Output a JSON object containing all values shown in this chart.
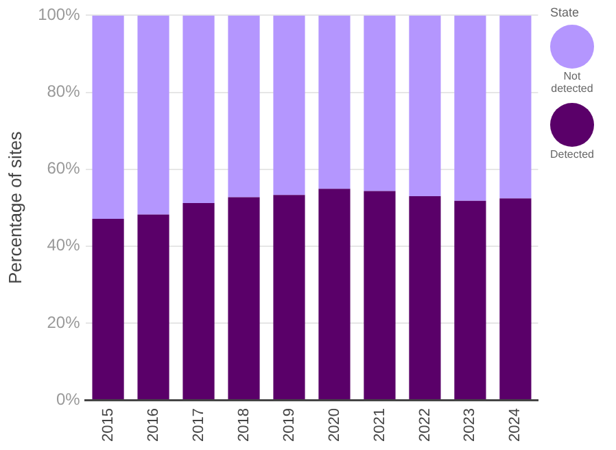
{
  "chart_data": {
    "type": "bar",
    "stacked": true,
    "ylabel": "Percentage of sites",
    "legend_title": "State",
    "legend": "right",
    "grid": "y",
    "categories": [
      "2015",
      "2016",
      "2017",
      "2018",
      "2019",
      "2020",
      "2021",
      "2022",
      "2023",
      "2024"
    ],
    "series": [
      {
        "name": "Detected",
        "color": "#5a0069",
        "values": [
          47.1,
          48.2,
          51.2,
          52.7,
          53.3,
          54.9,
          54.3,
          53.0,
          51.8,
          52.4
        ]
      },
      {
        "name": "Not detected",
        "color": "#b496fe",
        "values": [
          52.9,
          51.8,
          48.8,
          47.3,
          46.7,
          45.1,
          45.7,
          47.0,
          48.2,
          47.6
        ]
      }
    ],
    "ylim": [
      0,
      100
    ],
    "yticks": [
      {
        "value": 0,
        "label": "0%"
      },
      {
        "value": 20,
        "label": "20%"
      },
      {
        "value": 40,
        "label": "40%"
      },
      {
        "value": 60,
        "label": "60%"
      },
      {
        "value": 80,
        "label": "80%"
      },
      {
        "value": 100,
        "label": "100%"
      }
    ]
  }
}
